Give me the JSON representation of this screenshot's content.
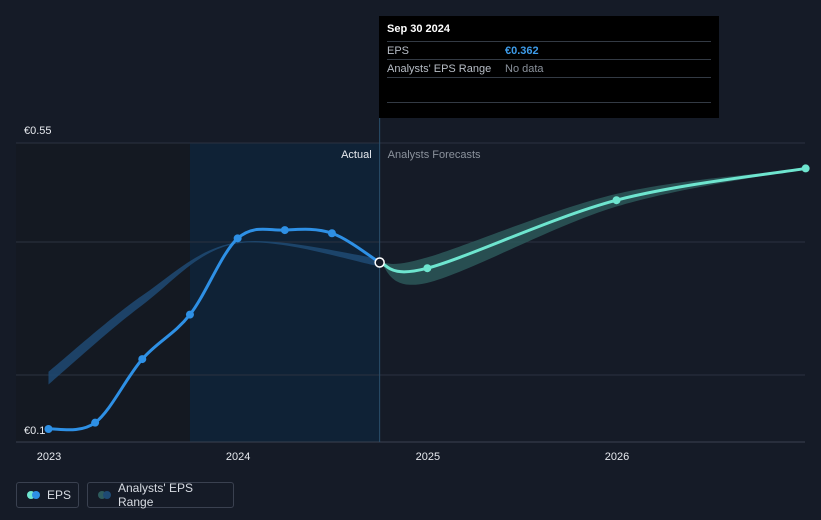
{
  "tooltip": {
    "date": "Sep 30 2024",
    "eps_label": "EPS",
    "eps_value": "€0.362",
    "range_label": "Analysts' EPS Range",
    "range_value": "No data"
  },
  "labels": {
    "actual": "Actual",
    "forecast": "Analysts Forecasts"
  },
  "legend": {
    "eps": "EPS",
    "range": "Analysts' EPS Range"
  },
  "colors": {
    "background": "#151b27",
    "eps_line": "#2e90e5",
    "forecast_line": "#6ee5cf",
    "range_band": "#2d5b5d",
    "past_band": "#1e4a73",
    "highlight": "#0f2236"
  },
  "chart_data": {
    "type": "line",
    "y_tick_labels": [
      "€0.55",
      "€0.1"
    ],
    "ylim": [
      0.1,
      0.55
    ],
    "x_tick_labels": [
      "2023",
      "2024",
      "2025",
      "2026"
    ],
    "series": [
      {
        "name": "EPS",
        "points": [
          {
            "x": "2022-12-31",
            "y": 0.1
          },
          {
            "x": "2023-03-31",
            "y": 0.11
          },
          {
            "x": "2023-06-30",
            "y": 0.21
          },
          {
            "x": "2023-09-30",
            "y": 0.28
          },
          {
            "x": "2023-12-31",
            "y": 0.4
          },
          {
            "x": "2024-03-31",
            "y": 0.413
          },
          {
            "x": "2024-06-30",
            "y": 0.408
          },
          {
            "x": "2024-09-30",
            "y": 0.362
          }
        ]
      },
      {
        "name": "EPS forecast",
        "points": [
          {
            "x": "2024-09-30",
            "y": 0.362
          },
          {
            "x": "2024-12-31",
            "y": 0.353
          },
          {
            "x": "2025-12-31",
            "y": 0.46
          },
          {
            "x": "2026-12-31",
            "y": 0.51
          }
        ]
      },
      {
        "name": "Analysts' EPS Range (past)",
        "upper": [
          {
            "x": "2022-12-31",
            "y": 0.19
          },
          {
            "x": "2023-06-30",
            "y": 0.31
          },
          {
            "x": "2023-12-31",
            "y": 0.394
          },
          {
            "x": "2024-09-30",
            "y": 0.368
          }
        ],
        "lower": [
          {
            "x": "2022-12-31",
            "y": 0.17
          },
          {
            "x": "2023-06-30",
            "y": 0.295
          },
          {
            "x": "2023-12-31",
            "y": 0.392
          },
          {
            "x": "2024-09-30",
            "y": 0.356
          }
        ]
      },
      {
        "name": "Analysts' EPS Range",
        "upper": [
          {
            "x": "2024-09-30",
            "y": 0.362
          },
          {
            "x": "2024-12-31",
            "y": 0.37
          },
          {
            "x": "2025-12-31",
            "y": 0.47
          },
          {
            "x": "2026-12-31",
            "y": 0.51
          }
        ],
        "lower": [
          {
            "x": "2024-09-30",
            "y": 0.362
          },
          {
            "x": "2024-12-31",
            "y": 0.33
          },
          {
            "x": "2025-12-31",
            "y": 0.45
          },
          {
            "x": "2026-12-31",
            "y": 0.51
          }
        ]
      }
    ],
    "actual_cutoff": "2024-09-30",
    "highlight_start": "2023-09-30",
    "grid": true,
    "legend_position": "bottom-left"
  }
}
